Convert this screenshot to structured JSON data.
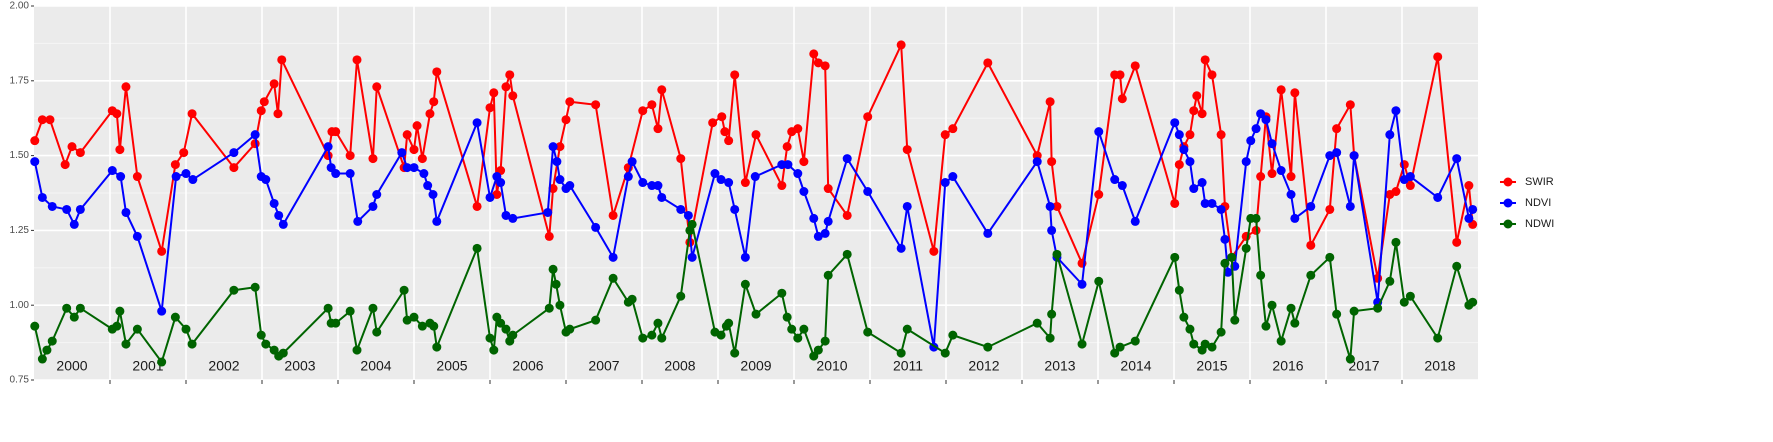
{
  "chart_data": {
    "type": "line",
    "xlim": [
      2000,
      2019
    ],
    "xticks": [
      2001,
      2002,
      2003,
      2004,
      2005,
      2006,
      2007,
      2008,
      2009,
      2010,
      2011,
      2012,
      2013,
      2014,
      2015,
      2016,
      2017,
      2018
    ],
    "year_labels": [
      2000,
      2001,
      2002,
      2003,
      2004,
      2005,
      2006,
      2007,
      2008,
      2009,
      2010,
      2011,
      2012,
      2013,
      2014,
      2015,
      2016,
      2017,
      2018
    ],
    "ylim": [
      0.75,
      2.0
    ],
    "yticks": [
      {
        "value": 0.75,
        "label": "0.75"
      },
      {
        "value": 1,
        "label": "1.00"
      },
      {
        "value": 1.25,
        "label": "1.25"
      },
      {
        "value": 1.5,
        "label": "1.50"
      },
      {
        "value": 1.75,
        "label": "1.75"
      },
      {
        "value": 2,
        "label": "2.00"
      }
    ],
    "grid": true,
    "legend": "right",
    "series": [
      {
        "name": "SWIR",
        "color": "#ff0000",
        "x": [
          2000.01,
          2000.11,
          2000.21,
          2000.41,
          2000.5,
          2000.61,
          2001.03,
          2001.09,
          2001.13,
          2001.21,
          2001.36,
          2001.68,
          2001.86,
          2001.97,
          2002.08,
          2002.63,
          2002.91,
          2002.99,
          2003.03,
          2003.16,
          2003.21,
          2003.26,
          2003.87,
          2003.92,
          2003.97,
          2004.16,
          2004.25,
          2004.46,
          2004.51,
          2004.87,
          2004.91,
          2005.0,
          2005.04,
          2005.11,
          2005.21,
          2005.26,
          2005.3,
          2005.83,
          2006.0,
          2006.05,
          2006.09,
          2006.14,
          2006.21,
          2006.26,
          2006.3,
          2006.78,
          2006.83,
          2006.92,
          2007.0,
          2007.05,
          2007.39,
          2007.62,
          2007.82,
          2008.01,
          2008.13,
          2008.21,
          2008.26,
          2008.51,
          2008.63,
          2008.93,
          2009.05,
          2009.09,
          2009.14,
          2009.22,
          2009.36,
          2009.5,
          2009.84,
          2009.91,
          2009.97,
          2010.05,
          2010.13,
          2010.26,
          2010.32,
          2010.41,
          2010.45,
          2010.7,
          2010.97,
          2011.41,
          2011.49,
          2011.84,
          2011.99,
          2012.09,
          2012.55,
          2013.2,
          2013.37,
          2013.39,
          2013.46,
          2013.79,
          2014.01,
          2014.22,
          2014.29,
          2014.32,
          2014.49,
          2015.01,
          2015.07,
          2015.13,
          2015.21,
          2015.26,
          2015.3,
          2015.37,
          2015.41,
          2015.5,
          2015.62,
          2015.67,
          2015.76,
          2015.95,
          2016.08,
          2016.14,
          2016.21,
          2016.29,
          2016.41,
          2016.54,
          2016.59,
          2016.8,
          2017.05,
          2017.14,
          2017.32,
          2017.37,
          2017.68,
          2017.84,
          2017.92,
          2018.03,
          2018.11,
          2018.47,
          2018.72,
          2018.88,
          2018.93
        ],
        "values": [
          1.55,
          1.62,
          1.62,
          1.47,
          1.53,
          1.51,
          1.65,
          1.64,
          1.52,
          1.73,
          1.43,
          1.18,
          1.47,
          1.51,
          1.64,
          1.46,
          1.54,
          1.65,
          1.68,
          1.74,
          1.64,
          1.82,
          1.5,
          1.58,
          1.58,
          1.5,
          1.82,
          1.49,
          1.73,
          1.46,
          1.57,
          1.52,
          1.6,
          1.49,
          1.64,
          1.68,
          1.78,
          1.33,
          1.66,
          1.71,
          1.37,
          1.45,
          1.73,
          1.77,
          1.7,
          1.23,
          1.39,
          1.53,
          1.62,
          1.68,
          1.67,
          1.3,
          1.46,
          1.65,
          1.67,
          1.59,
          1.72,
          1.49,
          1.21,
          1.61,
          1.63,
          1.58,
          1.55,
          1.77,
          1.41,
          1.57,
          1.4,
          1.53,
          1.58,
          1.59,
          1.48,
          1.84,
          1.81,
          1.8,
          1.39,
          1.3,
          1.63,
          1.87,
          1.52,
          1.18,
          1.57,
          1.59,
          1.81,
          1.5,
          1.68,
          1.48,
          1.33,
          1.14,
          1.37,
          1.77,
          1.77,
          1.69,
          1.8,
          1.34,
          1.47,
          1.53,
          1.57,
          1.65,
          1.7,
          1.64,
          1.82,
          1.77,
          1.57,
          1.33,
          1.16,
          1.23,
          1.25,
          1.43,
          1.63,
          1.44,
          1.72,
          1.43,
          1.71,
          1.2,
          1.32,
          1.59,
          1.67,
          1.5,
          1.09,
          1.37,
          1.38,
          1.47,
          1.4,
          1.83,
          1.21,
          1.4,
          1.27
        ]
      },
      {
        "name": "NDVI",
        "color": "#0000ff",
        "x": [
          2000.01,
          2000.11,
          2000.24,
          2000.43,
          2000.53,
          2000.61,
          2001.03,
          2001.14,
          2001.21,
          2001.36,
          2001.68,
          2001.87,
          2002.0,
          2002.09,
          2002.63,
          2002.91,
          2002.99,
          2003.05,
          2003.16,
          2003.22,
          2003.28,
          2003.87,
          2003.91,
          2003.97,
          2004.16,
          2004.26,
          2004.46,
          2004.51,
          2004.84,
          2004.91,
          2005.0,
          2005.13,
          2005.18,
          2005.25,
          2005.3,
          2005.83,
          2006.0,
          2006.09,
          2006.14,
          2006.21,
          2006.3,
          2006.76,
          2006.83,
          2006.88,
          2006.92,
          2007.0,
          2007.05,
          2007.39,
          2007.62,
          2007.82,
          2007.87,
          2008.01,
          2008.13,
          2008.21,
          2008.26,
          2008.51,
          2008.61,
          2008.66,
          2008.96,
          2009.04,
          2009.14,
          2009.22,
          2009.36,
          2009.49,
          2009.84,
          2009.92,
          2010.05,
          2010.13,
          2010.26,
          2010.32,
          2010.41,
          2010.45,
          2010.7,
          2010.97,
          2011.41,
          2011.49,
          2011.84,
          2011.99,
          2012.09,
          2012.55,
          2013.2,
          2013.37,
          2013.39,
          2013.46,
          2013.79,
          2014.01,
          2014.22,
          2014.32,
          2014.49,
          2015.01,
          2015.07,
          2015.13,
          2015.21,
          2015.26,
          2015.37,
          2015.41,
          2015.5,
          2015.62,
          2015.67,
          2015.71,
          2015.8,
          2015.95,
          2016.01,
          2016.08,
          2016.14,
          2016.21,
          2016.29,
          2016.41,
          2016.54,
          2016.59,
          2016.8,
          2017.05,
          2017.14,
          2017.32,
          2017.37,
          2017.68,
          2017.84,
          2017.92,
          2018.03,
          2018.11,
          2018.47,
          2018.72,
          2018.88,
          2018.93
        ],
        "values": [
          1.48,
          1.36,
          1.33,
          1.32,
          1.27,
          1.32,
          1.45,
          1.43,
          1.31,
          1.23,
          0.98,
          1.43,
          1.44,
          1.42,
          1.51,
          1.57,
          1.43,
          1.42,
          1.34,
          1.3,
          1.27,
          1.53,
          1.46,
          1.44,
          1.44,
          1.28,
          1.33,
          1.37,
          1.51,
          1.46,
          1.46,
          1.44,
          1.4,
          1.37,
          1.28,
          1.61,
          1.36,
          1.43,
          1.41,
          1.3,
          1.29,
          1.31,
          1.53,
          1.48,
          1.42,
          1.39,
          1.4,
          1.26,
          1.16,
          1.43,
          1.48,
          1.41,
          1.4,
          1.4,
          1.36,
          1.32,
          1.3,
          1.16,
          1.44,
          1.42,
          1.41,
          1.32,
          1.16,
          1.43,
          1.47,
          1.47,
          1.44,
          1.38,
          1.29,
          1.23,
          1.24,
          1.28,
          1.49,
          1.38,
          1.19,
          1.33,
          0.86,
          1.41,
          1.43,
          1.24,
          1.48,
          1.33,
          1.25,
          1.16,
          1.07,
          1.58,
          1.42,
          1.4,
          1.28,
          1.61,
          1.57,
          1.52,
          1.48,
          1.39,
          1.41,
          1.34,
          1.34,
          1.32,
          1.22,
          1.11,
          1.13,
          1.48,
          1.55,
          1.59,
          1.64,
          1.62,
          1.54,
          1.45,
          1.37,
          1.29,
          1.33,
          1.5,
          1.51,
          1.33,
          1.5,
          1.01,
          1.57,
          1.65,
          1.42,
          1.43,
          1.36,
          1.49,
          1.29,
          1.32
        ]
      },
      {
        "name": "NDWI",
        "color": "#006400",
        "x": [
          2000.01,
          2000.11,
          2000.17,
          2000.24,
          2000.43,
          2000.53,
          2000.61,
          2001.03,
          2001.09,
          2001.13,
          2001.21,
          2001.36,
          2001.68,
          2001.86,
          2002.0,
          2002.08,
          2002.63,
          2002.91,
          2002.99,
          2003.05,
          2003.16,
          2003.22,
          2003.28,
          2003.87,
          2003.91,
          2003.97,
          2004.16,
          2004.25,
          2004.46,
          2004.51,
          2004.87,
          2004.91,
          2005.0,
          2005.11,
          2005.21,
          2005.26,
          2005.3,
          2005.83,
          2006.0,
          2006.05,
          2006.09,
          2006.14,
          2006.21,
          2006.26,
          2006.3,
          2006.78,
          2006.83,
          2006.87,
          2006.92,
          2007.0,
          2007.05,
          2007.39,
          2007.62,
          2007.82,
          2007.87,
          2008.01,
          2008.13,
          2008.21,
          2008.26,
          2008.51,
          2008.63,
          2008.66,
          2008.96,
          2009.04,
          2009.11,
          2009.14,
          2009.22,
          2009.36,
          2009.5,
          2009.84,
          2009.91,
          2009.97,
          2010.05,
          2010.13,
          2010.26,
          2010.32,
          2010.41,
          2010.45,
          2010.7,
          2010.97,
          2011.41,
          2011.49,
          2011.99,
          2012.09,
          2012.55,
          2013.2,
          2013.37,
          2013.39,
          2013.46,
          2013.79,
          2014.01,
          2014.22,
          2014.29,
          2014.49,
          2015.01,
          2015.07,
          2015.13,
          2015.21,
          2015.26,
          2015.37,
          2015.41,
          2015.5,
          2015.62,
          2015.67,
          2015.76,
          2015.8,
          2015.95,
          2016.01,
          2016.08,
          2016.14,
          2016.21,
          2016.29,
          2016.41,
          2016.54,
          2016.59,
          2016.8,
          2017.05,
          2017.14,
          2017.32,
          2017.37,
          2017.68,
          2017.84,
          2017.92,
          2018.03,
          2018.11,
          2018.47,
          2018.72,
          2018.88,
          2018.93
        ],
        "values": [
          0.93,
          0.82,
          0.85,
          0.88,
          0.99,
          0.96,
          0.99,
          0.92,
          0.93,
          0.98,
          0.87,
          0.92,
          0.81,
          0.96,
          0.92,
          0.87,
          1.05,
          1.06,
          0.9,
          0.87,
          0.85,
          0.83,
          0.84,
          0.99,
          0.94,
          0.94,
          0.98,
          0.85,
          0.99,
          0.91,
          1.05,
          0.95,
          0.96,
          0.93,
          0.94,
          0.93,
          0.86,
          1.19,
          0.89,
          0.85,
          0.96,
          0.94,
          0.92,
          0.88,
          0.9,
          0.99,
          1.12,
          1.07,
          1.0,
          0.91,
          0.92,
          0.95,
          1.09,
          1.01,
          1.02,
          0.89,
          0.9,
          0.94,
          0.89,
          1.03,
          1.25,
          1.27,
          0.91,
          0.9,
          0.93,
          0.94,
          0.84,
          1.07,
          0.97,
          1.04,
          0.96,
          0.92,
          0.89,
          0.92,
          0.83,
          0.85,
          0.88,
          1.1,
          1.17,
          0.91,
          0.84,
          0.92,
          0.84,
          0.9,
          0.86,
          0.94,
          0.89,
          0.97,
          1.17,
          0.87,
          1.08,
          0.84,
          0.86,
          0.88,
          1.16,
          1.05,
          0.96,
          0.92,
          0.87,
          0.85,
          0.87,
          0.86,
          0.91,
          1.14,
          1.16,
          0.95,
          1.19,
          1.29,
          1.29,
          1.1,
          0.93,
          1.0,
          0.88,
          0.99,
          0.94,
          1.1,
          1.16,
          0.97,
          0.82,
          0.98,
          0.99,
          1.08,
          1.21,
          1.01,
          1.03,
          0.89,
          1.13,
          1.0,
          1.01
        ]
      }
    ]
  }
}
